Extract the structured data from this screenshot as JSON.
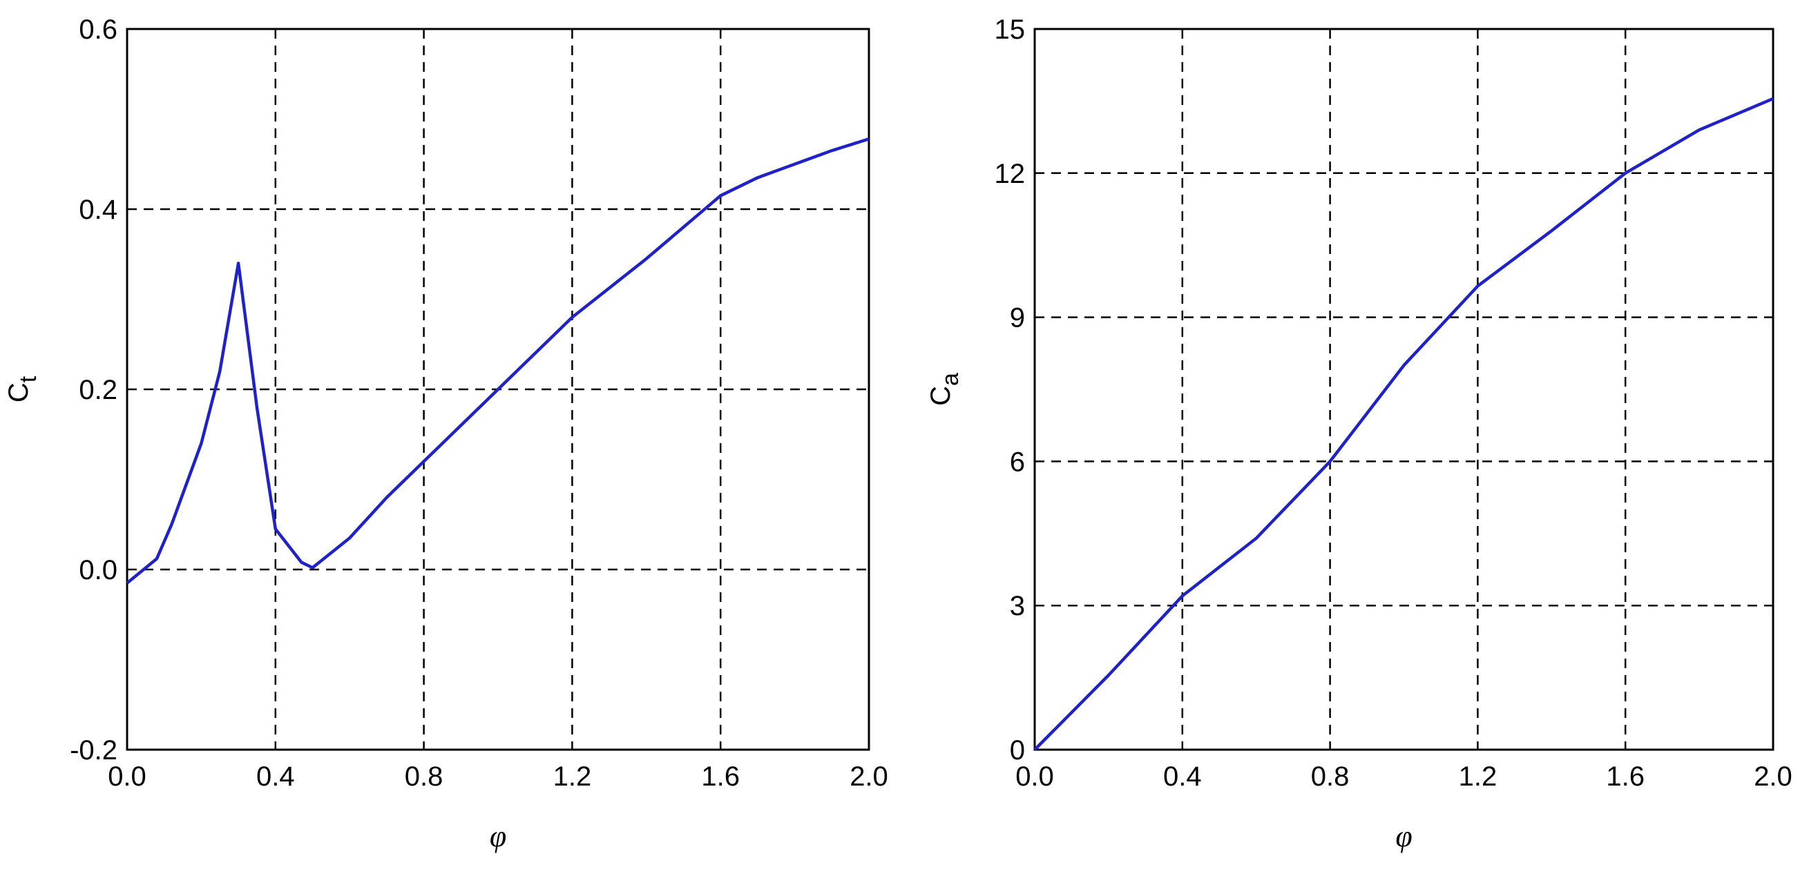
{
  "chart_data": [
    {
      "type": "line",
      "xlabel": "φ",
      "ylabel": "C",
      "ylabel_subscript": "t",
      "xlim": [
        0,
        2
      ],
      "ylim": [
        -0.2,
        0.6
      ],
      "xticks": [
        {
          "value": 0,
          "label": "0.0"
        },
        0.4,
        0.8,
        1.2,
        1.6,
        {
          "value": 2,
          "label": "2.0"
        }
      ],
      "yticks": [
        -0.2,
        {
          "value": 0,
          "label": "0.0"
        },
        0.2,
        0.4,
        0.6
      ],
      "grid": true,
      "series": [
        {
          "color": "#1f22c8",
          "x": [
            0,
            0.08,
            0.12,
            0.2,
            0.25,
            0.3,
            0.35,
            0.4,
            0.47,
            0.5,
            0.6,
            0.7,
            0.8,
            1.0,
            1.2,
            1.4,
            1.6,
            1.7,
            1.8,
            1.9,
            2.0
          ],
          "values": [
            -0.015,
            0.012,
            0.05,
            0.14,
            0.22,
            0.34,
            0.18,
            0.045,
            0.008,
            0.002,
            0.035,
            0.08,
            0.12,
            0.2,
            0.28,
            0.345,
            0.415,
            0.435,
            0.45,
            0.465,
            0.478
          ]
        }
      ]
    },
    {
      "type": "line",
      "xlabel": "φ",
      "ylabel": "C",
      "ylabel_subscript": "a",
      "xlim": [
        0,
        2
      ],
      "ylim": [
        0,
        15
      ],
      "xticks": [
        {
          "value": 0,
          "label": "0.0"
        },
        0.4,
        0.8,
        1.2,
        1.6,
        {
          "value": 2,
          "label": "2.0"
        }
      ],
      "yticks": [
        0,
        3,
        6,
        9,
        12,
        15
      ],
      "grid": true,
      "series": [
        {
          "color": "#1f22c8",
          "x": [
            0,
            0.2,
            0.4,
            0.6,
            0.8,
            1.0,
            1.2,
            1.4,
            1.6,
            1.8,
            2.0
          ],
          "values": [
            0,
            1.55,
            3.2,
            4.4,
            6.0,
            8.0,
            9.65,
            10.8,
            12.0,
            12.9,
            13.55
          ]
        }
      ]
    }
  ]
}
